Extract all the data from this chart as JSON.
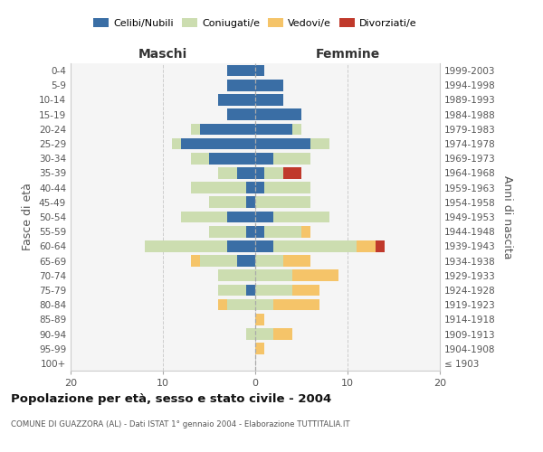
{
  "age_groups": [
    "100+",
    "95-99",
    "90-94",
    "85-89",
    "80-84",
    "75-79",
    "70-74",
    "65-69",
    "60-64",
    "55-59",
    "50-54",
    "45-49",
    "40-44",
    "35-39",
    "30-34",
    "25-29",
    "20-24",
    "15-19",
    "10-14",
    "5-9",
    "0-4"
  ],
  "birth_years": [
    "≤ 1903",
    "1904-1908",
    "1909-1913",
    "1914-1918",
    "1919-1923",
    "1924-1928",
    "1929-1933",
    "1934-1938",
    "1939-1943",
    "1944-1948",
    "1949-1953",
    "1954-1958",
    "1959-1963",
    "1964-1968",
    "1969-1973",
    "1974-1978",
    "1979-1983",
    "1984-1988",
    "1989-1993",
    "1994-1998",
    "1999-2003"
  ],
  "maschi": {
    "celibi": [
      0,
      0,
      0,
      0,
      0,
      1,
      0,
      2,
      3,
      1,
      3,
      1,
      1,
      2,
      5,
      8,
      6,
      3,
      4,
      3,
      3
    ],
    "coniugati": [
      0,
      0,
      1,
      0,
      3,
      3,
      4,
      4,
      9,
      4,
      5,
      4,
      6,
      2,
      2,
      1,
      1,
      0,
      0,
      0,
      0
    ],
    "vedovi": [
      0,
      0,
      0,
      0,
      1,
      0,
      0,
      1,
      0,
      0,
      0,
      0,
      0,
      0,
      0,
      0,
      0,
      0,
      0,
      0,
      0
    ],
    "divorziati": [
      0,
      0,
      0,
      0,
      0,
      0,
      0,
      0,
      0,
      0,
      0,
      0,
      0,
      0,
      0,
      0,
      0,
      0,
      0,
      0,
      0
    ]
  },
  "femmine": {
    "nubili": [
      0,
      0,
      0,
      0,
      0,
      0,
      0,
      0,
      2,
      1,
      2,
      0,
      1,
      1,
      2,
      6,
      4,
      5,
      3,
      3,
      1
    ],
    "coniugate": [
      0,
      0,
      2,
      0,
      2,
      4,
      4,
      3,
      9,
      4,
      6,
      6,
      5,
      2,
      4,
      2,
      1,
      0,
      0,
      0,
      0
    ],
    "vedove": [
      0,
      1,
      2,
      1,
      5,
      3,
      5,
      3,
      2,
      1,
      0,
      0,
      0,
      0,
      0,
      0,
      0,
      0,
      0,
      0,
      0
    ],
    "divorziate": [
      0,
      0,
      0,
      0,
      0,
      0,
      0,
      0,
      1,
      0,
      0,
      0,
      0,
      2,
      0,
      0,
      0,
      0,
      0,
      0,
      0
    ]
  },
  "colors": {
    "celibi_nubili": "#3A6EA5",
    "coniugati": "#CCDDB0",
    "vedovi": "#F5C469",
    "divorziati": "#C0392B"
  },
  "xlim": [
    -20,
    20
  ],
  "xticks": [
    -20,
    -10,
    0,
    10,
    20
  ],
  "xticklabels": [
    "20",
    "10",
    "0",
    "10",
    "20"
  ],
  "title": "Popolazione per età, sesso e stato civile - 2004",
  "subtitle": "COMUNE DI GUAZZORA (AL) - Dati ISTAT 1° gennaio 2004 - Elaborazione TUTTITALIA.IT",
  "ylabel": "Fasce di età",
  "ylabel2": "Anni di nascita",
  "maschi_label": "Maschi",
  "femmine_label": "Femmine",
  "bg_color": "#f5f5f5",
  "grid_color": "#cccccc",
  "legend_labels": [
    "Celibi/Nubili",
    "Coniugati/e",
    "Vedovi/e",
    "Divorziati/e"
  ]
}
